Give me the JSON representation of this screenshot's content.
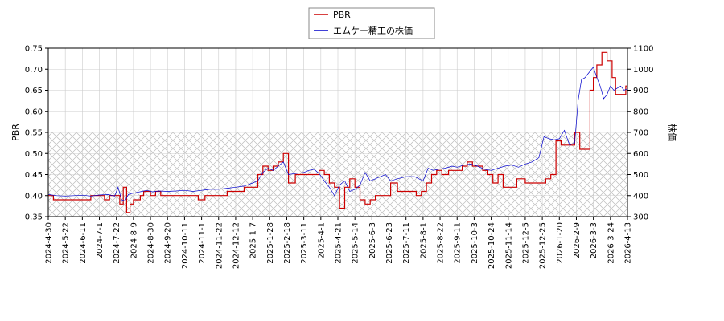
{
  "chart_data": {
    "type": "line",
    "legend": {
      "placement": "top-center",
      "entries": [
        "PBR",
        "エムケー精工の株価"
      ]
    },
    "colors": {
      "pbr": "#cc0000",
      "price": "#0000cc",
      "band_hatch": "#bbbbbb"
    },
    "left_axis": {
      "label": "PBR",
      "ylim": [
        0.35,
        0.75
      ],
      "ticks": [
        "0.35",
        "0.40",
        "0.45",
        "0.50",
        "0.55",
        "0.60",
        "0.65",
        "0.70",
        "0.75"
      ]
    },
    "right_axis": {
      "label": "株価",
      "ylim": [
        300,
        1100
      ],
      "ticks": [
        "300",
        "400",
        "500",
        "600",
        "700",
        "800",
        "900",
        "1000",
        "1100"
      ]
    },
    "band": {
      "axis": "left",
      "from": 0.35,
      "to": 0.55
    },
    "grid": true,
    "x_ticks": [
      "2024-4-30",
      "2024-5-22",
      "2024-6-11",
      "2024-7-1",
      "2024-7-22",
      "2024-8-9",
      "2024-8-30",
      "2024-9-20",
      "2024-10-11",
      "2024-11-1",
      "2024-11-22",
      "2024-12-12",
      "2025-1-7",
      "2025-1-28",
      "2025-2-18",
      "2025-3-11",
      "2025-4-1",
      "2025-4-21",
      "2025-5-14",
      "2025-6-3",
      "2025-6-23",
      "2025-7-11",
      "2025-8-1",
      "2025-8-22",
      "2025-9-11",
      "2025-10-3",
      "2025-10-24",
      "2025-11-14",
      "2025-12-5",
      "2025-12-25",
      "2026-1-20",
      "2026-2-9",
      "2026-3-3",
      "2026-3-24",
      "2026-4-13"
    ],
    "series": [
      {
        "name": "PBR",
        "axis": "left",
        "x": [
          0,
          0.3,
          0.6,
          1,
          1.5,
          2,
          2.5,
          3,
          3.3,
          3.6,
          3.9,
          4.2,
          4.4,
          4.6,
          4.8,
          5,
          5.2,
          5.4,
          5.6,
          6,
          6.3,
          6.6,
          7,
          7.5,
          8,
          8.5,
          8.8,
          9.2,
          9.6,
          10,
          10.5,
          11,
          11.5,
          12,
          12.3,
          12.6,
          12.9,
          13.2,
          13.5,
          13.8,
          14.1,
          14.5,
          15,
          15.3,
          15.6,
          15.9,
          16.2,
          16.5,
          16.8,
          17.1,
          17.4,
          17.7,
          18,
          18.3,
          18.6,
          18.9,
          19.2,
          19.5,
          19.8,
          20.1,
          20.5,
          21,
          21.3,
          21.6,
          21.9,
          22.2,
          22.5,
          22.8,
          23.1,
          23.5,
          24,
          24.3,
          24.6,
          24.9,
          25.2,
          25.5,
          25.8,
          26.1,
          26.4,
          26.7,
          27,
          27.5,
          28,
          28.3,
          28.6,
          28.8,
          29.2,
          29.5,
          29.8,
          30.1,
          30.4,
          30.7,
          30.9,
          31.2,
          31.5,
          31.8,
          32,
          32.2,
          32.5,
          32.8,
          33.1,
          33.3,
          33.6,
          33.9,
          34.2,
          34.6
        ],
        "y": [
          0.4,
          0.39,
          0.39,
          0.39,
          0.39,
          0.39,
          0.4,
          0.4,
          0.39,
          0.4,
          0.4,
          0.38,
          0.42,
          0.36,
          0.38,
          0.39,
          0.39,
          0.4,
          0.41,
          0.4,
          0.41,
          0.4,
          0.4,
          0.4,
          0.4,
          0.4,
          0.39,
          0.4,
          0.4,
          0.4,
          0.41,
          0.41,
          0.42,
          0.42,
          0.45,
          0.47,
          0.46,
          0.47,
          0.48,
          0.5,
          0.43,
          0.45,
          0.45,
          0.45,
          0.45,
          0.46,
          0.45,
          0.43,
          0.42,
          0.37,
          0.42,
          0.44,
          0.42,
          0.39,
          0.38,
          0.39,
          0.4,
          0.4,
          0.4,
          0.43,
          0.41,
          0.41,
          0.41,
          0.4,
          0.41,
          0.43,
          0.45,
          0.46,
          0.45,
          0.46,
          0.46,
          0.47,
          0.48,
          0.47,
          0.47,
          0.46,
          0.45,
          0.43,
          0.45,
          0.42,
          0.42,
          0.44,
          0.43,
          0.43,
          0.43,
          0.43,
          0.44,
          0.45,
          0.53,
          0.52,
          0.52,
          0.52,
          0.55,
          0.51,
          0.51,
          0.65,
          0.68,
          0.71,
          0.74,
          0.72,
          0.68,
          0.64,
          0.64,
          0.66,
          0.67,
          0.67
        ]
      },
      {
        "name": "エムケー精工の株価",
        "axis": "right",
        "x": [
          0,
          0.5,
          1,
          1.5,
          2,
          2.5,
          3,
          3.5,
          3.9,
          4.1,
          4.3,
          4.5,
          4.7,
          4.9,
          5.2,
          5.5,
          5.8,
          6.1,
          6.5,
          7,
          7.5,
          8,
          8.5,
          9,
          9.5,
          10,
          10.5,
          11,
          11.5,
          12,
          12.3,
          12.6,
          12.9,
          13.2,
          13.5,
          13.8,
          14.1,
          14.5,
          15,
          15.3,
          15.6,
          15.9,
          16.2,
          16.5,
          16.8,
          17.1,
          17.4,
          17.7,
          18,
          18.3,
          18.6,
          18.9,
          19.2,
          19.5,
          19.8,
          20.1,
          20.5,
          21,
          21.5,
          22,
          22.3,
          22.6,
          22.9,
          23.3,
          23.7,
          24,
          24.4,
          24.8,
          25.2,
          25.6,
          26,
          26.4,
          26.8,
          27.2,
          27.6,
          28,
          28.4,
          28.8,
          29.1,
          29.4,
          29.7,
          30,
          30.3,
          30.6,
          30.9,
          31.1,
          31.3,
          31.5,
          31.8,
          32,
          32.2,
          32.4,
          32.6,
          32.8,
          33,
          33.2,
          33.4,
          33.6,
          33.8,
          34.1,
          34.4,
          34.6
        ],
        "y": [
          405,
          400,
          398,
          400,
          402,
          398,
          403,
          405,
          398,
          440,
          380,
          375,
          405,
          410,
          415,
          420,
          425,
          418,
          422,
          420,
          422,
          425,
          420,
          425,
          430,
          430,
          435,
          440,
          445,
          460,
          470,
          510,
          530,
          520,
          540,
          560,
          500,
          505,
          510,
          520,
          525,
          505,
          470,
          440,
          400,
          450,
          470,
          420,
          430,
          450,
          510,
          470,
          480,
          490,
          500,
          470,
          480,
          490,
          490,
          470,
          530,
          520,
          525,
          530,
          540,
          535,
          545,
          550,
          540,
          525,
          520,
          530,
          540,
          545,
          535,
          550,
          560,
          580,
          680,
          670,
          665,
          670,
          710,
          640,
          650,
          850,
          950,
          960,
          990,
          1010,
          960,
          920,
          860,
          880,
          920,
          900,
          910,
          920,
          900,
          910,
          880,
          870
        ]
      }
    ]
  }
}
